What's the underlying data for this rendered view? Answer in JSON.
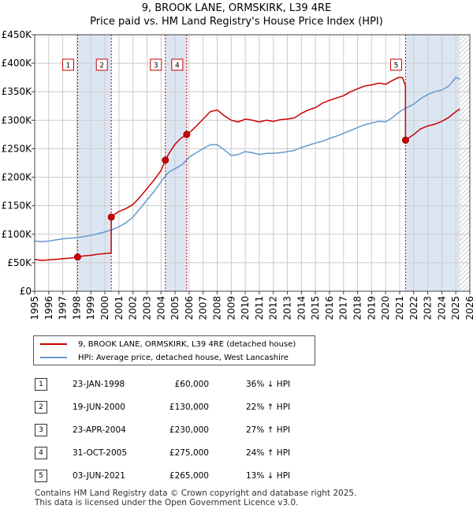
{
  "title": {
    "line1": "9, BROOK LANE, ORMSKIRK, L39 4RE",
    "line2": "Price paid vs. HM Land Registry's House Price Index (HPI)"
  },
  "legend": {
    "property_label": "9, BROOK LANE, ORMSKIRK, L39 4RE (detached house)",
    "hpi_label": "HPI: Average price, detached house, West Lancashire"
  },
  "colors": {
    "property": "#cc0000",
    "hpi": "#6699cc",
    "shade": "#dce6f2",
    "grid": "#cccccc",
    "marker_line": "#cc0000"
  },
  "sales": [
    {
      "num": "1",
      "date": "23-JAN-1998",
      "price": "£60,000",
      "hpi": "36% ↓ HPI"
    },
    {
      "num": "2",
      "date": "19-JUN-2000",
      "price": "£130,000",
      "hpi": "22% ↑ HPI"
    },
    {
      "num": "3",
      "date": "23-APR-2004",
      "price": "£230,000",
      "hpi": "27% ↑ HPI"
    },
    {
      "num": "4",
      "date": "31-OCT-2005",
      "price": "£275,000",
      "hpi": "24% ↑ HPI"
    },
    {
      "num": "5",
      "date": "03-JUN-2021",
      "price": "£265,000",
      "hpi": "13% ↓ HPI"
    }
  ],
  "footer": {
    "line1": "Contains HM Land Registry data © Crown copyright and database right 2025.",
    "line2": "This data is licensed under the Open Government Licence v3.0."
  },
  "chart_data": {
    "type": "line",
    "title": "9, BROOK LANE, ORMSKIRK, L39 4RE — Price paid vs. HM Land Registry's House Price Index (HPI)",
    "xlabel": "",
    "ylabel": "",
    "xlim": [
      1995,
      2026
    ],
    "ylim": [
      0,
      450000
    ],
    "y_ticks": [
      0,
      50000,
      100000,
      150000,
      200000,
      250000,
      300000,
      350000,
      400000,
      450000
    ],
    "y_tick_labels": [
      "£0",
      "£50K",
      "£100K",
      "£150K",
      "£200K",
      "£250K",
      "£300K",
      "£350K",
      "£400K",
      "£450K"
    ],
    "x_ticks": [
      1995,
      1996,
      1997,
      1998,
      1999,
      2000,
      2001,
      2002,
      2003,
      2004,
      2005,
      2006,
      2007,
      2008,
      2009,
      2010,
      2011,
      2012,
      2013,
      2014,
      2015,
      2016,
      2017,
      2018,
      2019,
      2020,
      2021,
      2022,
      2023,
      2024,
      2025,
      2026
    ],
    "grid": true,
    "shaded_ranges": [
      [
        1998.06,
        2000.46
      ],
      [
        2004.31,
        2005.83
      ],
      [
        2021.42,
        2025.3
      ]
    ],
    "hatched_range": [
      2025.3,
      2026
    ],
    "sale_markers": [
      {
        "label": "1",
        "x": 1998.06,
        "y": 60000
      },
      {
        "label": "2",
        "x": 2000.46,
        "y": 130000
      },
      {
        "label": "3",
        "x": 2004.31,
        "y": 230000
      },
      {
        "label": "4",
        "x": 2005.83,
        "y": 275000
      },
      {
        "label": "5",
        "x": 2021.42,
        "y": 265000
      }
    ],
    "series": [
      {
        "name": "9, BROOK LANE, ORMSKIRK, L39 4RE (detached house)",
        "x": [
          1995,
          1995.5,
          1996,
          1996.5,
          1997,
          1997.5,
          1998.06,
          1998.5,
          1999,
          1999.5,
          2000,
          2000.45,
          2000.46,
          2000.7,
          2001,
          2001.5,
          2002,
          2002.5,
          2003,
          2003.5,
          2004,
          2004.31,
          2004.6,
          2005,
          2005.4,
          2005.83,
          2006.2,
          2006.6,
          2007,
          2007.5,
          2008,
          2008.5,
          2009,
          2009.5,
          2010,
          2010.5,
          2011,
          2011.5,
          2012,
          2012.5,
          2013,
          2013.5,
          2014,
          2014.5,
          2015,
          2015.5,
          2016,
          2016.5,
          2017,
          2017.5,
          2018,
          2018.5,
          2019,
          2019.5,
          2020,
          2020.5,
          2020.9,
          2021.2,
          2021.41,
          2021.42,
          2021.6,
          2022,
          2022.5,
          2023,
          2023.5,
          2024,
          2024.5,
          2025,
          2025.3
        ],
        "y": [
          56000,
          54000,
          55000,
          56000,
          57000,
          58000,
          60000,
          62000,
          63000,
          65000,
          66000,
          67000,
          130000,
          135000,
          140000,
          145000,
          152000,
          165000,
          180000,
          195000,
          212000,
          230000,
          243000,
          258000,
          268000,
          275000,
          282000,
          292000,
          302000,
          315000,
          318000,
          308000,
          300000,
          297000,
          302000,
          300000,
          297000,
          300000,
          298000,
          301000,
          302000,
          304000,
          312000,
          318000,
          322000,
          330000,
          335000,
          339000,
          343000,
          350000,
          355000,
          360000,
          362000,
          365000,
          363000,
          370000,
          375000,
          375000,
          360000,
          265000,
          268000,
          275000,
          285000,
          290000,
          293000,
          298000,
          305000,
          315000,
          320000
        ]
      },
      {
        "name": "HPI: Average price, detached house, West Lancashire",
        "x": [
          1995,
          1995.5,
          1996,
          1996.5,
          1997,
          1997.5,
          1998,
          1998.5,
          1999,
          1999.5,
          2000,
          2000.5,
          2001,
          2001.5,
          2002,
          2002.5,
          2003,
          2003.5,
          2004,
          2004.5,
          2005,
          2005.5,
          2006,
          2006.5,
          2007,
          2007.5,
          2008,
          2008.5,
          2009,
          2009.5,
          2010,
          2010.5,
          2011,
          2011.5,
          2012,
          2012.5,
          2013,
          2013.5,
          2014,
          2014.5,
          2015,
          2015.5,
          2016,
          2016.5,
          2017,
          2017.5,
          2018,
          2018.5,
          2019,
          2019.5,
          2020,
          2020.5,
          2021,
          2021.5,
          2022,
          2022.5,
          2023,
          2023.5,
          2024,
          2024.5,
          2025,
          2025.3
        ],
        "y": [
          88000,
          87000,
          88000,
          90000,
          92000,
          93000,
          94000,
          96000,
          98000,
          101000,
          104000,
          108000,
          113000,
          120000,
          130000,
          145000,
          160000,
          175000,
          192000,
          208000,
          215000,
          222000,
          235000,
          243000,
          250000,
          257000,
          257000,
          248000,
          238000,
          240000,
          245000,
          243000,
          240000,
          242000,
          242000,
          243000,
          245000,
          247000,
          252000,
          256000,
          260000,
          263000,
          268000,
          272000,
          277000,
          282000,
          287000,
          292000,
          295000,
          298000,
          297000,
          305000,
          315000,
          322000,
          328000,
          338000,
          345000,
          350000,
          353000,
          360000,
          375000,
          372000
        ]
      }
    ]
  }
}
